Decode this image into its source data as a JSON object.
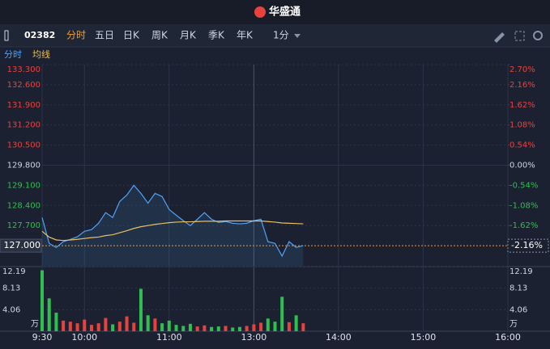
{
  "ui": {
    "app_title": "华盛通",
    "code": "02382",
    "tabs": [
      "分时",
      "五日",
      "日K",
      "周K",
      "月K",
      "季K",
      "年K"
    ],
    "period": "1分"
  },
  "chart_data": [
    {
      "type": "line",
      "x": [
        "9:30",
        "9:35",
        "9:40",
        "9:45",
        "9:50",
        "9:55",
        "10:00",
        "10:05",
        "10:10",
        "10:15",
        "10:20",
        "10:25",
        "10:30",
        "10:35",
        "10:40",
        "10:45",
        "10:50",
        "10:55",
        "11:00",
        "11:05",
        "11:10",
        "11:15",
        "11:20",
        "11:25",
        "11:30",
        "11:35",
        "11:40",
        "11:45",
        "11:50",
        "11:55",
        "12:00",
        "13:05",
        "13:10",
        "13:15",
        "13:20",
        "13:25",
        "13:30",
        "13:35"
      ],
      "series": [
        {
          "name": "分时",
          "color": "#4fa3f7",
          "values": [
            127.98,
            127.08,
            126.94,
            127.14,
            127.22,
            127.31,
            127.5,
            127.56,
            127.78,
            128.15,
            127.98,
            128.54,
            128.76,
            129.1,
            128.82,
            128.48,
            128.82,
            128.71,
            128.26,
            128.06,
            127.87,
            127.7,
            127.92,
            128.15,
            127.92,
            127.81,
            127.84,
            127.78,
            127.76,
            127.78,
            127.87,
            127.92,
            127.14,
            127.08,
            126.64,
            127.14,
            126.94,
            127.0
          ]
        },
        {
          "name": "均线",
          "color": "#e8c060",
          "values": [
            127.5,
            127.3,
            127.2,
            127.18,
            127.2,
            127.22,
            127.25,
            127.28,
            127.3,
            127.35,
            127.38,
            127.45,
            127.52,
            127.6,
            127.66,
            127.7,
            127.74,
            127.77,
            127.8,
            127.82,
            127.83,
            127.83,
            127.84,
            127.85,
            127.85,
            127.85,
            127.86,
            127.86,
            127.86,
            127.86,
            127.86,
            127.86,
            127.84,
            127.82,
            127.79,
            127.78,
            127.77,
            127.76
          ]
        }
      ],
      "ylim": [
        126.3,
        133.3
      ],
      "yticks": [
        {
          "value": 133.3,
          "label": "133.300"
        },
        {
          "value": 132.6,
          "label": "132.600"
        },
        {
          "value": 131.9,
          "label": "131.900"
        },
        {
          "value": 131.2,
          "label": "131.200"
        },
        {
          "value": 130.5,
          "label": "130.500"
        },
        {
          "value": 129.8,
          "label": "129.800"
        },
        {
          "value": 129.1,
          "label": "129.100"
        },
        {
          "value": 128.4,
          "label": "128.400"
        },
        {
          "value": 127.7,
          "label": "127.700"
        }
      ],
      "y2lim": [
        -2.7,
        2.7
      ],
      "y2ticks": [
        {
          "value": 2.7,
          "label": "2.70%"
        },
        {
          "value": 2.16,
          "label": "2.16%"
        },
        {
          "value": 1.62,
          "label": "1.62%"
        },
        {
          "value": 1.08,
          "label": "1.08%"
        },
        {
          "value": 0.54,
          "label": "0.54%"
        },
        {
          "value": 0,
          "label": "0.00%"
        },
        {
          "value": -0.54,
          "label": "-0.54%"
        },
        {
          "value": -1.08,
          "label": "-1.08%"
        },
        {
          "value": -1.62,
          "label": "-1.62%"
        }
      ],
      "xticks": [
        "9:30",
        "10:00",
        "11:00",
        "13:00",
        "14:00",
        "15:00",
        "16:00"
      ],
      "last_price": {
        "value": 127.0,
        "label": "127.000"
      },
      "last_change": {
        "value": -2.16,
        "label": "-2.16%"
      },
      "up_color": "#e8423f",
      "down_color": "#2fbf4f"
    },
    {
      "type": "bar",
      "values": [
        11.5,
        6.2,
        3.5,
        2.0,
        1.8,
        1.5,
        2.2,
        1.2,
        1.5,
        2.5,
        1.3,
        1.8,
        2.8,
        1.6,
        8.0,
        3.0,
        2.4,
        1.5,
        2.0,
        1.2,
        1.0,
        1.4,
        0.9,
        1.1,
        0.8,
        0.9,
        1.0,
        0.7,
        0.8,
        1.0,
        1.3,
        1.6,
        2.4,
        1.8,
        6.5,
        1.7,
        3.0,
        1.5
      ],
      "ylim": [
        0,
        12.19
      ],
      "yticks": [
        4.06,
        8.13,
        12.19
      ],
      "y_label": "万"
    }
  ]
}
